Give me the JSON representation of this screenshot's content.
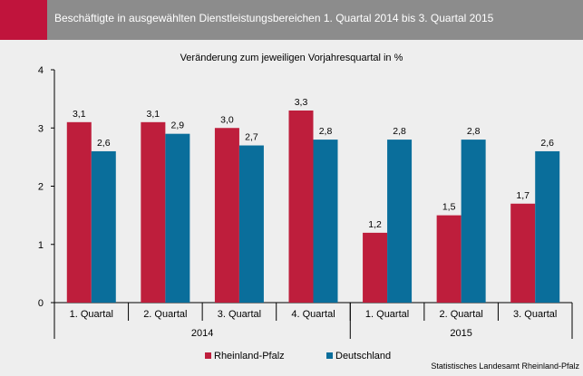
{
  "header": {
    "title": "Beschäftigte in ausgewählten Dienstleistungsbereichen 1. Quartal 2014 bis 3. Quartal 2015",
    "accent_color": "#c0143c",
    "background_color": "#8c8c8c"
  },
  "source": "Statistisches Landesamt Rheinland-Pfalz",
  "chart_data": {
    "type": "bar",
    "title": "Veränderung zum jeweiligen Vorjahresquartal in %",
    "categories": [
      "1. Quartal",
      "2. Quartal",
      "3. Quartal",
      "4. Quartal",
      "1. Quartal",
      "2. Quartal",
      "3. Quartal"
    ],
    "groups": [
      {
        "label": "2014",
        "categories": 4
      },
      {
        "label": "2015",
        "categories": 3
      }
    ],
    "series": [
      {
        "name": "Rheinland-Pfalz",
        "color": "#be1e3c",
        "values": [
          3.1,
          3.1,
          3.0,
          3.3,
          1.2,
          1.5,
          1.7
        ],
        "labels": [
          "3,1",
          "3,1",
          "3,0",
          "3,3",
          "1,2",
          "1,5",
          "1,7"
        ]
      },
      {
        "name": "Deutschland",
        "color": "#0a6e9b",
        "values": [
          2.6,
          2.9,
          2.7,
          2.8,
          2.8,
          2.8,
          2.6
        ],
        "labels": [
          "2,6",
          "2,9",
          "2,7",
          "2,8",
          "2,8",
          "2,8",
          "2,6"
        ]
      }
    ],
    "yticks": [
      "0",
      "1",
      "2",
      "3",
      "4"
    ],
    "ylim": [
      0,
      4
    ],
    "grid": false,
    "legend_position": "bottom-left"
  }
}
